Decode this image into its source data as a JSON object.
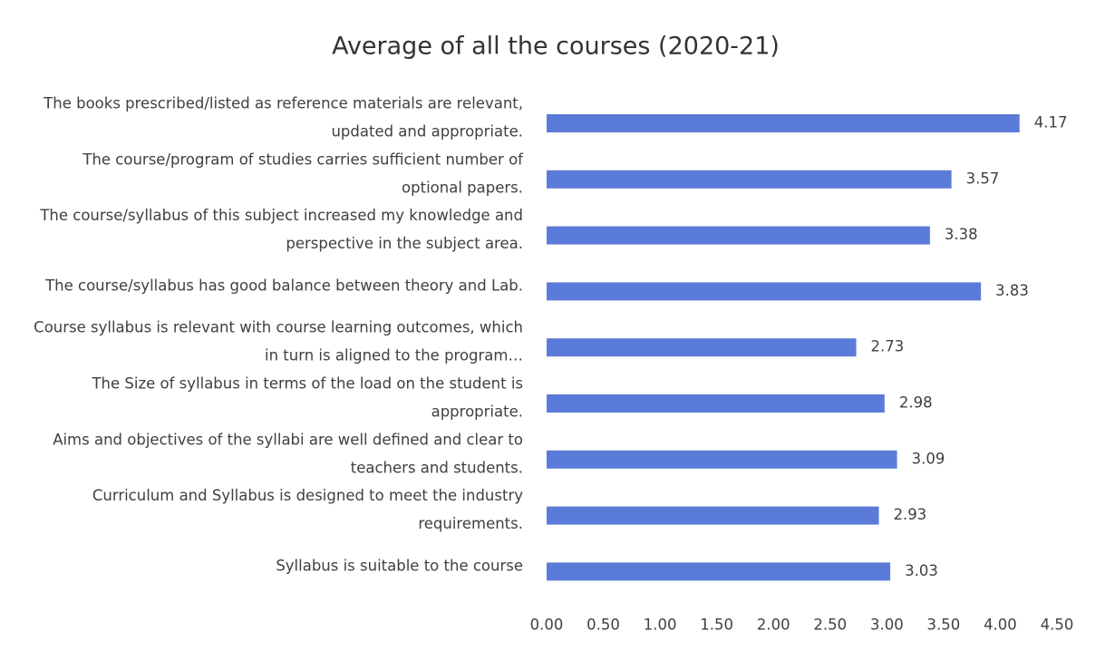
{
  "chart_data": {
    "type": "barh",
    "title": "Average of all the courses  (2020-21)",
    "categories": [
      "The books prescribed/listed as reference materials are relevant, updated and appropriate.",
      "The course/program of studies carries sufficient number of optional papers.",
      "The course/syllabus of this subject increased my knowledge and perspective in the subject area.",
      "The course/syllabus has good balance between theory and Lab.",
      "Course syllabus is relevant with course learning outcomes, which in turn is aligned to the program…",
      "The Size of syllabus in terms of the load on the student is appropriate.",
      "Aims and objectives of the syllabi are well defined and clear to teachers and students.",
      "Curriculum and Syllabus is designed to meet the industry requirements.",
      "Syllabus is suitable to the course"
    ],
    "values": [
      4.17,
      3.57,
      3.38,
      3.83,
      2.73,
      2.98,
      3.09,
      2.93,
      3.03
    ],
    "color": "#5b7bd8",
    "xlim": [
      0,
      4.5
    ],
    "xticks": [
      {
        "value": 0,
        "label": "0.00"
      },
      {
        "value": 0.5,
        "label": "0.50"
      },
      {
        "value": 1,
        "label": "1.00"
      },
      {
        "value": 1.5,
        "label": "1.50"
      },
      {
        "value": 2,
        "label": "2.00"
      },
      {
        "value": 2.5,
        "label": "2.50"
      },
      {
        "value": 3,
        "label": "3.00"
      },
      {
        "value": 3.5,
        "label": "3.50"
      },
      {
        "value": 4,
        "label": "4.00"
      },
      {
        "value": 4.5,
        "label": "4.50"
      }
    ],
    "grid": false
  }
}
